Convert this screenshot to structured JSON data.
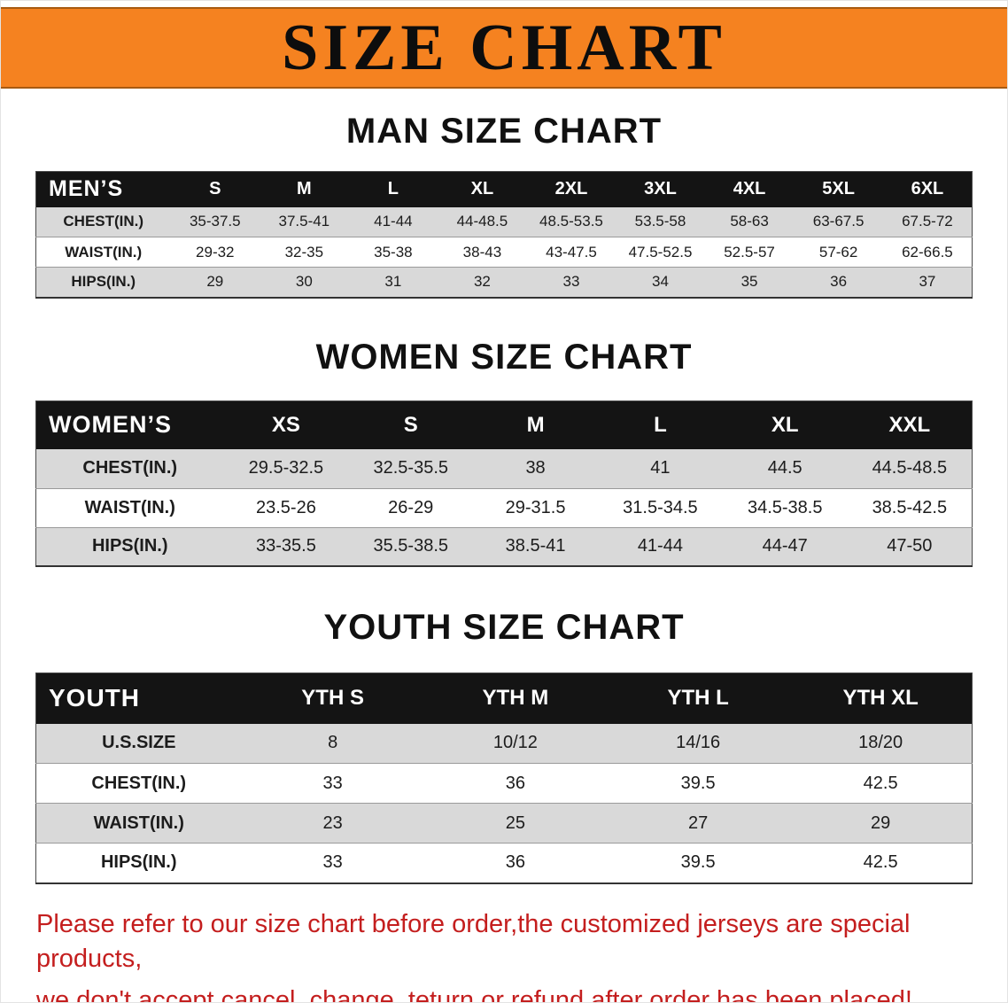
{
  "banner": {
    "title": "SIZE CHART"
  },
  "colors": {
    "banner-bg": "#f58220",
    "banner-edge": "#a85a10",
    "table-header-bg": "#141414",
    "row-alt": "#d9d9d9",
    "title-text": "#111111",
    "footer-text": "#c41e1e"
  },
  "sections": [
    {
      "title": "MAN SIZE CHART",
      "table": {
        "header_label": "MEN’S",
        "columns": [
          "S",
          "M",
          "L",
          "XL",
          "2XL",
          "3XL",
          "4XL",
          "5XL",
          "6XL"
        ],
        "rows": [
          {
            "label": "CHEST(IN.)",
            "values": [
              "35-37.5",
              "37.5-41",
              "41-44",
              "44-48.5",
              "48.5-53.5",
              "53.5-58",
              "58-63",
              "63-67.5",
              "67.5-72"
            ]
          },
          {
            "label": "WAIST(IN.)",
            "values": [
              "29-32",
              "32-35",
              "35-38",
              "38-43",
              "43-47.5",
              "47.5-52.5",
              "52.5-57",
              "57-62",
              "62-66.5"
            ]
          },
          {
            "label": "HIPS(IN.)",
            "values": [
              "29",
              "30",
              "31",
              "32",
              "33",
              "34",
              "35",
              "36",
              "37"
            ]
          }
        ]
      }
    },
    {
      "title": "WOMEN SIZE CHART",
      "table": {
        "header_label": "WOMEN’S",
        "columns": [
          "XS",
          "S",
          "M",
          "L",
          "XL",
          "XXL"
        ],
        "rows": [
          {
            "label": "CHEST(IN.)",
            "values": [
              "29.5-32.5",
              "32.5-35.5",
              "38",
              "41",
              "44.5",
              "44.5-48.5"
            ]
          },
          {
            "label": "WAIST(IN.)",
            "values": [
              "23.5-26",
              "26-29",
              "29-31.5",
              "31.5-34.5",
              "34.5-38.5",
              "38.5-42.5"
            ]
          },
          {
            "label": "HIPS(IN.)",
            "values": [
              "33-35.5",
              "35.5-38.5",
              "38.5-41",
              "41-44",
              "44-47",
              "47-50"
            ]
          }
        ]
      }
    },
    {
      "title": "YOUTH SIZE CHART",
      "table": {
        "header_label": "YOUTH",
        "columns": [
          "YTH S",
          "YTH M",
          "YTH L",
          "YTH XL"
        ],
        "rows": [
          {
            "label": "U.S.SIZE",
            "values": [
              "8",
              "10/12",
              "14/16",
              "18/20"
            ]
          },
          {
            "label": "CHEST(IN.)",
            "values": [
              "33",
              "36",
              "39.5",
              "42.5"
            ]
          },
          {
            "label": "WAIST(IN.)",
            "values": [
              "23",
              "25",
              "27",
              "29"
            ]
          },
          {
            "label": "HIPS(IN.)",
            "values": [
              "33",
              "36",
              "39.5",
              "42.5"
            ]
          }
        ]
      }
    }
  ],
  "footer": {
    "lines": [
      "Please refer to our size chart before order,the customized jerseys are special products,",
      "we don't accept cancel, change, teturn or refund after order has been placed!"
    ]
  }
}
